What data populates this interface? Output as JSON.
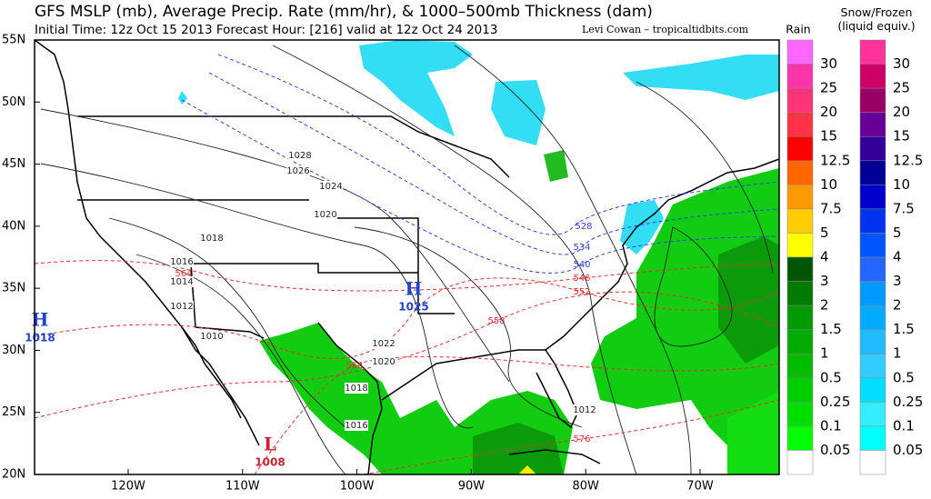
{
  "header": {
    "title": "GFS MSLP (mb), Average Precip. Rate (mm/hr), & 1000–500mb Thickness (dam)",
    "subtitle": "Initial Time: 12z Oct 15 2013 Forecast Hour: [216] valid at 12z Oct 24 2013",
    "credit": "Levi Cowan – tropicaltidbits.com"
  },
  "map": {
    "lat_labels": [
      "55N",
      "50N",
      "45N",
      "40N",
      "35N",
      "30N",
      "25N",
      "20N"
    ],
    "lon_labels": [
      "120W",
      "110W",
      "100W",
      "90W",
      "80W",
      "70W"
    ],
    "centers": [
      {
        "letter": "H",
        "value": "1018"
      },
      {
        "letter": "H",
        "value": "1025"
      },
      {
        "letter": "L",
        "value": "1008"
      }
    ],
    "isobar_labels": [
      "1028",
      "1026",
      "1024",
      "1020",
      "1018",
      "1016",
      "1014",
      "1012",
      "1010",
      "1022",
      "1020",
      "1018",
      "1016",
      "1012"
    ],
    "thickness_labels": [
      "528",
      "534",
      "540",
      "546",
      "552",
      "558",
      "564",
      "564",
      "576"
    ]
  },
  "legend": {
    "rain": {
      "title": "Rain",
      "labels": [
        "30",
        "25",
        "20",
        "15",
        "12.5",
        "10",
        "7.5",
        "5",
        "4",
        "3",
        "2",
        "1.5",
        "1",
        "0.5",
        "0.25",
        "0.1",
        "0.05"
      ],
      "colors": [
        "#ff66ff",
        "#ff33aa",
        "#ff3377",
        "#ff3344",
        "#ff0000",
        "#ff6600",
        "#ff9900",
        "#ffcc00",
        "#ffff00",
        "#005500",
        "#007a00",
        "#009900",
        "#00aa00",
        "#00bb00",
        "#00cc00",
        "#00dd00",
        "#00ff00",
        "#ffffff"
      ]
    },
    "snow": {
      "title": "Snow/Frozen\n(liquid equiv.)",
      "labels": [
        "30",
        "25",
        "20",
        "15",
        "12.5",
        "10",
        "7.5",
        "5",
        "4",
        "3",
        "2",
        "1.5",
        "1",
        "0.5",
        "0.25",
        "0.1",
        "0.05"
      ],
      "colors": [
        "#ff3399",
        "#cc0066",
        "#990066",
        "#660099",
        "#330099",
        "#000099",
        "#0000cc",
        "#0033ee",
        "#0055ff",
        "#2266ff",
        "#0099ff",
        "#00aaff",
        "#22bbff",
        "#33ccff",
        "#00ddff",
        "#33eeff",
        "#00ffff",
        "#ffffff"
      ]
    }
  }
}
